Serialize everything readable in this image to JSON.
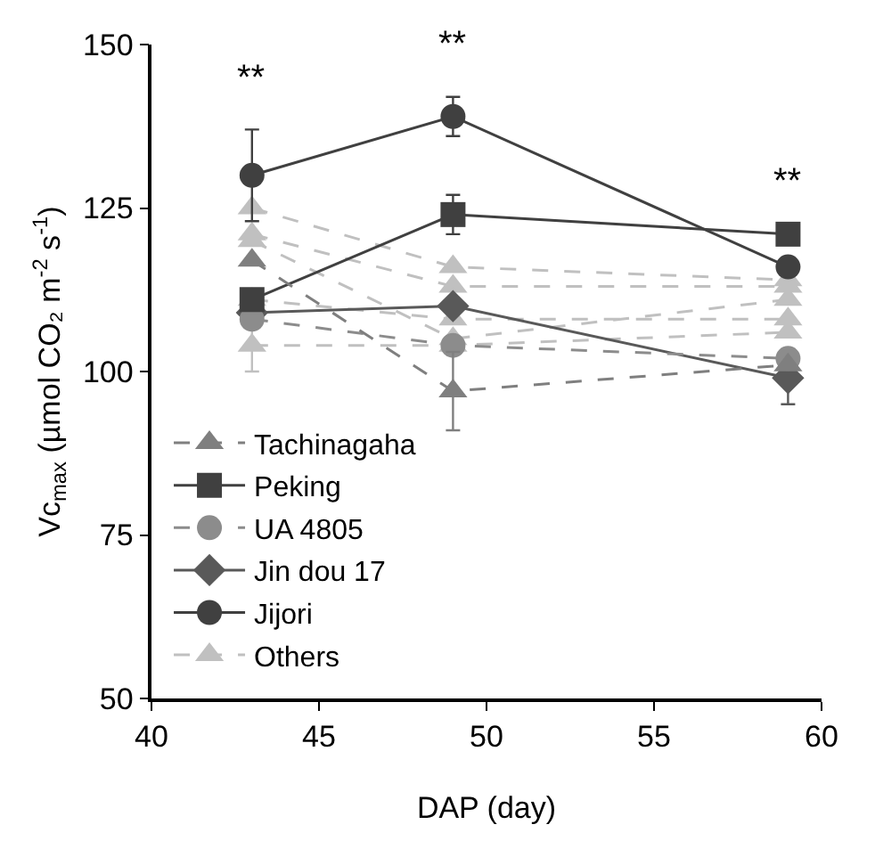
{
  "chart_data": {
    "type": "line",
    "xlabel": "DAP (day)",
    "ylabel": "Vc$_{max}$ (µmol CO₂ m$^{-2}$ s$^{-1}$)",
    "x": [
      43,
      49,
      59
    ],
    "xlim": [
      40,
      60
    ],
    "xticks": [
      40,
      45,
      50,
      55,
      60
    ],
    "ylim": [
      50,
      150
    ],
    "yticks": [
      50,
      75,
      100,
      125,
      150
    ],
    "legend": "bottom left",
    "annotations": [
      "**",
      "**",
      "**"
    ],
    "series": [
      {
        "name": "Tachinagaha",
        "color": "#7f7f7f",
        "marker": "triangle",
        "line_style": "dashed",
        "values": [
          117,
          97,
          101
        ],
        "errors": [
          null,
          6,
          null
        ]
      },
      {
        "name": "Peking",
        "color": "#404040",
        "marker": "square",
        "line_style": "solid",
        "values": [
          111,
          124,
          121
        ],
        "errors": [
          null,
          3,
          null
        ]
      },
      {
        "name": "UA 4805",
        "color": "#8c8c8c",
        "marker": "circle",
        "line_style": "dashed",
        "values": [
          108,
          104,
          102
        ]
      },
      {
        "name": "Jin dou 17",
        "color": "#595959",
        "marker": "diamond",
        "line_style": "solid",
        "values": [
          109,
          110,
          99
        ],
        "errors": [
          null,
          null,
          4
        ]
      },
      {
        "name": "Jijori",
        "color": "#404040",
        "marker": "circle",
        "line_style": "solid",
        "values": [
          130,
          139,
          116
        ],
        "errors": [
          7,
          3,
          null
        ]
      },
      {
        "name": "Others",
        "color": "#c0c0c0",
        "marker": "triangle",
        "line_style": "dashed",
        "values": [
          125,
          116,
          114
        ]
      },
      {
        "color": "#c0c0c0",
        "marker": "triangle",
        "line_style": "dashed",
        "values": [
          121,
          113,
          113
        ]
      },
      {
        "color": "#c0c0c0",
        "marker": "triangle",
        "line_style": "dashed",
        "values": [
          120,
          105,
          111
        ]
      },
      {
        "color": "#c0c0c0",
        "marker": "triangle",
        "line_style": "dashed",
        "values": [
          111,
          108,
          108
        ]
      },
      {
        "color": "#c0c0c0",
        "marker": "triangle",
        "line_style": "dashed",
        "values": [
          104,
          104,
          106
        ],
        "errors": [
          4,
          null,
          null
        ]
      }
    ]
  }
}
